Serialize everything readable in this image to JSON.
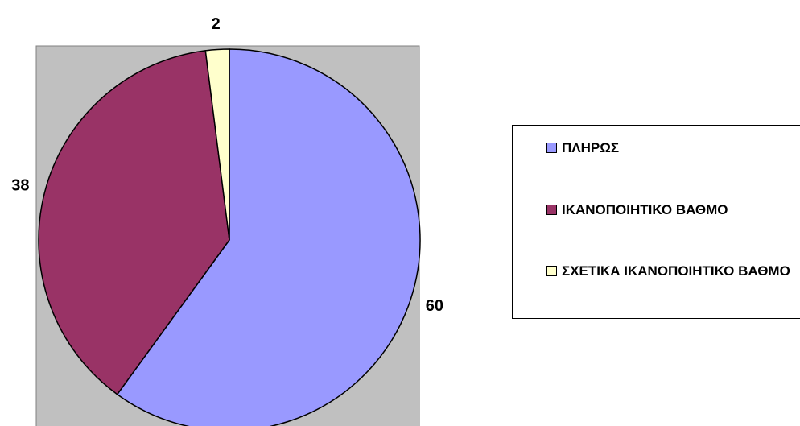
{
  "chart_data": {
    "type": "pie",
    "categories": [
      "ΠΛΗΡΩΣ",
      "ΙΚΑΝΟΠΟΙΗΤΙΚΟ ΒΑΘΜΟ",
      "ΣΧΕΤΙΚΑ ΙΚΑΝΟΠΟΙΗΤΙΚΟ ΒΑΘΜΟ"
    ],
    "values": [
      60,
      38,
      2
    ],
    "colors": [
      "#9999ff",
      "#993366",
      "#ffffcc"
    ],
    "legend": "right"
  }
}
